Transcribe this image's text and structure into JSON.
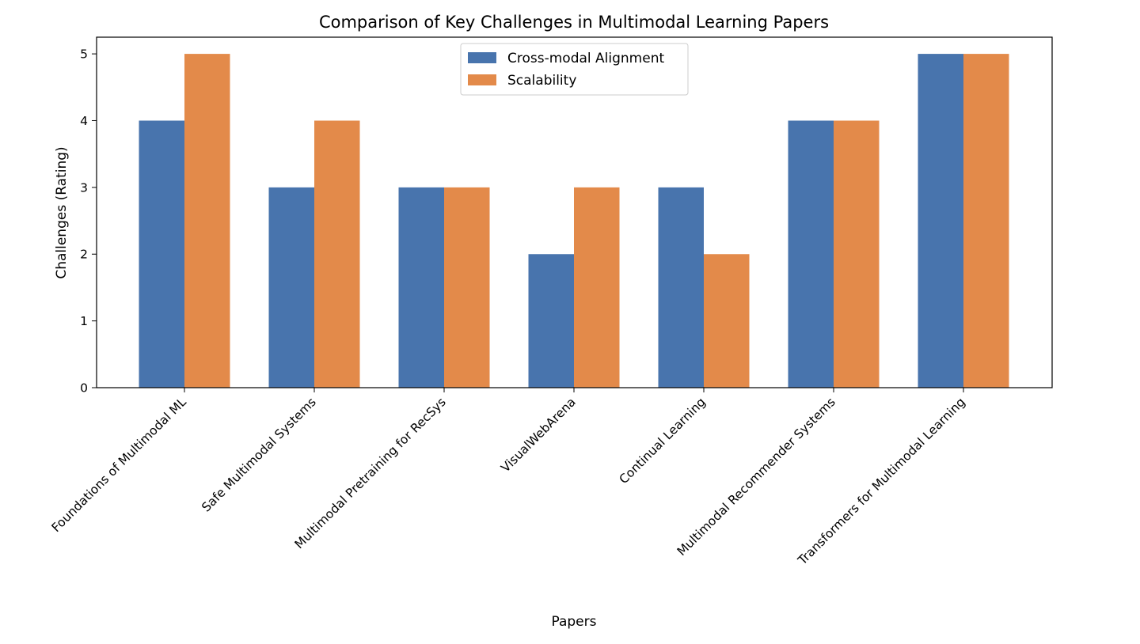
{
  "chart_data": {
    "type": "bar",
    "title": "Comparison of Key Challenges in Multimodal Learning Papers",
    "xlabel": "Papers",
    "ylabel": "Challenges (Rating)",
    "ylim": [
      0,
      5.25
    ],
    "yticks": [
      "0",
      "1",
      "2",
      "3",
      "4",
      "5"
    ],
    "categories": [
      "Foundations of Multimodal ML",
      "Safe Multimodal Systems",
      "Multimodal Pretraining for RecSys",
      "VisualWebArena",
      "Continual Learning",
      "Multimodal Recommender Systems",
      "Transformers for Multimodal Learning"
    ],
    "series": [
      {
        "name": "Cross-modal Alignment",
        "color": "#4874ad",
        "values": [
          4,
          3,
          3,
          2,
          3,
          4,
          5
        ]
      },
      {
        "name": "Scalability",
        "color": "#e38a4a",
        "values": [
          5,
          4,
          3,
          3,
          2,
          4,
          5
        ]
      }
    ],
    "legend_position": "top-center",
    "grid": false
  }
}
